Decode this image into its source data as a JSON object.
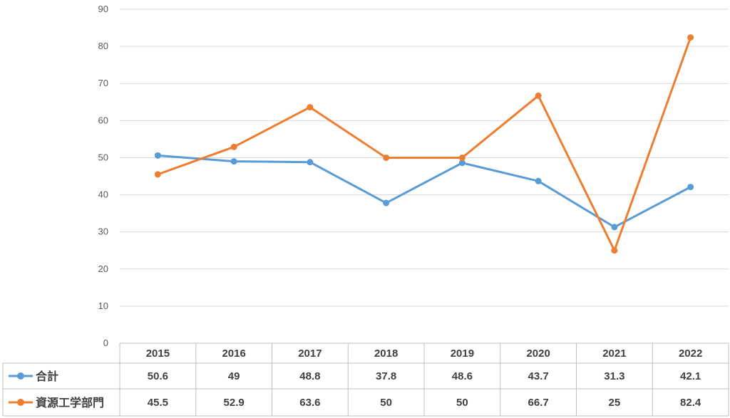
{
  "chart_data": {
    "type": "line",
    "categories": [
      "2015",
      "2016",
      "2017",
      "2018",
      "2019",
      "2020",
      "2021",
      "2022"
    ],
    "series": [
      {
        "name": "合計",
        "color": "#5B9BD5",
        "values": [
          50.6,
          49,
          48.8,
          37.8,
          48.6,
          43.7,
          31.3,
          42.1
        ],
        "labels": [
          "50.6",
          "49",
          "48.8",
          "37.8",
          "48.6",
          "43.7",
          "31.3",
          "42.1"
        ]
      },
      {
        "name": "資源工学部門",
        "color": "#ED7D31",
        "values": [
          45.5,
          52.9,
          63.6,
          50,
          50,
          66.7,
          25,
          82.4
        ],
        "labels": [
          "45.5",
          "52.9",
          "63.6",
          "50",
          "50",
          "66.7",
          "25",
          "82.4"
        ]
      }
    ],
    "y_ticks": [
      "0",
      "10",
      "20",
      "30",
      "40",
      "50",
      "60",
      "70",
      "80",
      "90"
    ],
    "ylim": [
      0,
      90
    ],
    "grid": true,
    "legend": "data-table"
  }
}
